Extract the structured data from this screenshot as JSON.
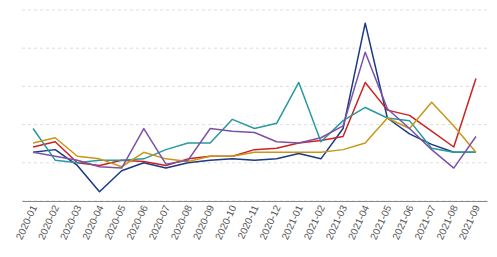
{
  "chart_data": {
    "type": "line",
    "categories": [
      "2020-01",
      "2020-02",
      "2020-03",
      "2020-04",
      "2020-05",
      "2020-06",
      "2020-07",
      "2020-08",
      "2020-09",
      "2020-10",
      "2020-11",
      "2020-12",
      "2021-01",
      "2021-02",
      "2021-03",
      "2021-04",
      "2021-05",
      "2021-06",
      "2021-07",
      "2021-08",
      "2021-09"
    ],
    "series": [
      {
        "color": "#1a3a82",
        "values": [
          0.02,
          0.04,
          -0.08,
          -0.28,
          -0.12,
          -0.06,
          -0.1,
          -0.06,
          -0.04,
          -0.03,
          -0.04,
          -0.03,
          0.01,
          -0.03,
          0.2,
          1.0,
          0.28,
          0.16,
          0.08,
          0.02,
          0.02
        ]
      },
      {
        "color": "#cc2222",
        "values": [
          0.06,
          0.1,
          -0.06,
          -0.08,
          -0.04,
          -0.05,
          -0.08,
          -0.03,
          -0.01,
          -0.01,
          0.04,
          0.05,
          0.09,
          0.11,
          0.14,
          0.55,
          0.34,
          0.3,
          0.18,
          0.06,
          0.58
        ]
      },
      {
        "color": "#2899a0",
        "values": [
          0.2,
          -0.04,
          -0.06,
          -0.04,
          -0.04,
          -0.03,
          0.04,
          0.09,
          0.09,
          0.27,
          0.2,
          0.24,
          0.55,
          0.1,
          0.26,
          0.36,
          0.28,
          0.26,
          0.05,
          0.02,
          0.02
        ]
      },
      {
        "color": "#c8961a",
        "values": [
          0.09,
          0.13,
          -0.01,
          -0.03,
          -0.09,
          0.02,
          -0.03,
          -0.05,
          -0.01,
          -0.01,
          0.02,
          0.02,
          0.02,
          0.02,
          0.04,
          0.09,
          0.28,
          0.2,
          0.4,
          0.22,
          0.02
        ]
      },
      {
        "color": "#7b52a8",
        "values": [
          0.02,
          -0.01,
          -0.04,
          -0.09,
          -0.1,
          0.2,
          -0.07,
          -0.04,
          0.2,
          0.18,
          0.17,
          0.1,
          0.09,
          0.13,
          0.22,
          0.78,
          0.35,
          0.2,
          0.04,
          -0.1,
          0.14
        ]
      }
    ],
    "ylim": [
      -0.35,
      1.1
    ],
    "yticks": [
      -0.35,
      -0.06,
      0.23,
      0.52,
      0.81,
      1.1
    ],
    "grid": true,
    "tick_labels": "x"
  }
}
